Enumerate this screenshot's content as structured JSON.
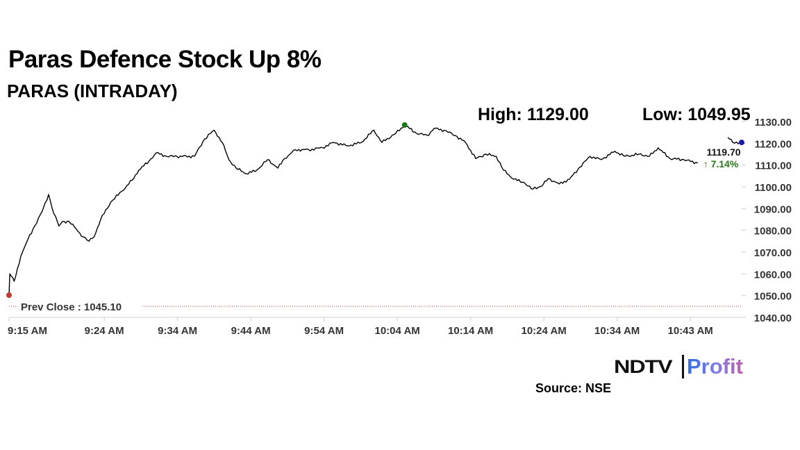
{
  "chart_data": {
    "type": "line",
    "title": "Paras Defence Stock Up 8%",
    "subtitle": "PARAS (INTRADAY)",
    "high_label": "High: 1129.00",
    "low_label": "Low: 1049.95",
    "last_price": "1119.70",
    "change": "↑ 7.14%",
    "prev_close_label": "Prev Close : 1045.10",
    "prev_close": 1045.1,
    "source": "Source: NSE",
    "xlim": [
      0,
      100
    ],
    "ylim": [
      1040,
      1130
    ],
    "y_ticks": [
      1130,
      1120,
      1110,
      1100,
      1090,
      1080,
      1070,
      1060,
      1050,
      1040
    ],
    "y_tick_labels": [
      "1130.00",
      "1120.00",
      "1110.00",
      "1100.00",
      "1090.00",
      "1080.00",
      "1070.00",
      "1060.00",
      "1050.00",
      "1040.00"
    ],
    "x_ticks": [
      0,
      13,
      23,
      33,
      43,
      53,
      63,
      73,
      83,
      93
    ],
    "x_tick_labels": [
      "9:15 AM",
      "9:24 AM",
      "9:34 AM",
      "9:44 AM",
      "9:54 AM",
      "10:04 AM",
      "10:14 AM",
      "10:24 AM",
      "10:34 AM",
      "10:43 AM"
    ],
    "series": [
      {
        "name": "PARAS",
        "segments": [
          [
            [
              0,
              1050.2
            ],
            [
              0.1,
              1060
            ],
            [
              0.7,
              1056.6
            ],
            [
              1.6,
              1068
            ],
            [
              2.6,
              1076
            ],
            [
              3.5,
              1082
            ],
            [
              4.5,
              1088.5
            ],
            [
              5.4,
              1096.5
            ],
            [
              5.9,
              1090
            ],
            [
              6.8,
              1082
            ],
            [
              7.3,
              1084
            ],
            [
              8.2,
              1084
            ],
            [
              9.2,
              1080.5
            ],
            [
              10.1,
              1077
            ],
            [
              10.9,
              1075
            ],
            [
              11.6,
              1077
            ],
            [
              12.5,
              1085
            ],
            [
              13.9,
              1093
            ],
            [
              15.4,
              1098
            ],
            [
              16.8,
              1103
            ],
            [
              17.7,
              1107.6
            ],
            [
              19.1,
              1111.8
            ],
            [
              20.1,
              1115.6
            ],
            [
              21.5,
              1114
            ],
            [
              22.9,
              1114
            ],
            [
              25.3,
              1114
            ],
            [
              26.7,
              1122
            ],
            [
              28,
              1126
            ],
            [
              29.1,
              1120.4
            ],
            [
              30,
              1112.5
            ],
            [
              31,
              1108.6
            ],
            [
              32.4,
              1106
            ],
            [
              33.8,
              1107.6
            ],
            [
              35.3,
              1112.5
            ],
            [
              36.7,
              1108.6
            ],
            [
              37.6,
              1113
            ],
            [
              39.1,
              1117
            ],
            [
              40.9,
              1117
            ],
            [
              42.8,
              1118
            ],
            [
              44.3,
              1120.4
            ],
            [
              46.2,
              1118.8
            ],
            [
              48.1,
              1120.4
            ],
            [
              49.8,
              1126
            ],
            [
              50.9,
              1120.4
            ],
            [
              52.8,
              1124.6
            ],
            [
              54,
              1128.4
            ],
            [
              55.6,
              1124.6
            ],
            [
              57.1,
              1123.6
            ],
            [
              58,
              1126.8
            ],
            [
              59.4,
              1126
            ],
            [
              60.9,
              1123.6
            ],
            [
              62.3,
              1120.4
            ],
            [
              63.7,
              1113
            ],
            [
              65.1,
              1115
            ],
            [
              66.5,
              1114
            ],
            [
              67.5,
              1107.6
            ],
            [
              68.9,
              1103.5
            ],
            [
              70.3,
              1102
            ],
            [
              71.3,
              1099
            ],
            [
              72.7,
              1100.3
            ],
            [
              73.6,
              1103.8
            ],
            [
              75.1,
              1101.3
            ],
            [
              76.5,
              1103.5
            ],
            [
              77.9,
              1109
            ],
            [
              79.3,
              1114
            ],
            [
              80.8,
              1112.5
            ],
            [
              82.7,
              1116.3
            ],
            [
              84.1,
              1114
            ],
            [
              86,
              1115
            ],
            [
              87.4,
              1114
            ],
            [
              88.6,
              1117.9
            ],
            [
              90.2,
              1113
            ],
            [
              92.1,
              1112.5
            ],
            [
              94,
              1110.9
            ]
          ],
          [
            [
              98.1,
              1122.7
            ],
            [
              98.8,
              1120.4
            ],
            [
              100,
              1120.4
            ]
          ]
        ]
      }
    ],
    "markers": [
      {
        "name": "open-marker",
        "x": 0,
        "y": 1050.2,
        "color": "#c0392b"
      },
      {
        "name": "high-marker",
        "x": 54,
        "y": 1128.4,
        "color": "#1a7a1a"
      },
      {
        "name": "last-marker",
        "x": 100,
        "y": 1120.4,
        "color": "#1a1aa8"
      }
    ],
    "colors": {
      "line": "#000000",
      "prev_close": "#c0392b",
      "change": "#2a7a1a",
      "axis": "#cfcfcf"
    }
  },
  "logo": {
    "ndtv": "NDTV",
    "profit": "Profit"
  }
}
